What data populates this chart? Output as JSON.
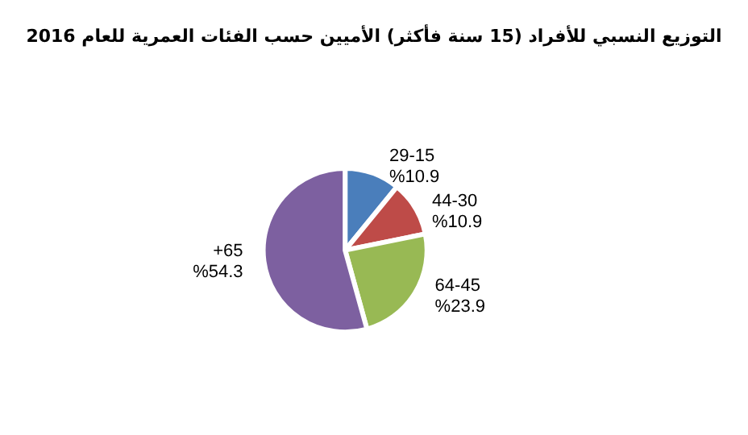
{
  "chart_data": {
    "type": "pie",
    "title": "التوزيع النسبي للأفراد (15 سنة فأكثر) الأميين حسب الفئات العمرية للعام 2016",
    "categories": [
      "29-15",
      "44-30",
      "64-45",
      "+65"
    ],
    "values": [
      10.9,
      10.9,
      23.9,
      54.3
    ],
    "value_labels": [
      "%10.9",
      "%10.9",
      "%23.9",
      "%54.3"
    ],
    "colors": [
      "#4a7ebb",
      "#be4b48",
      "#98b954",
      "#7d60a0"
    ],
    "legend": false
  }
}
